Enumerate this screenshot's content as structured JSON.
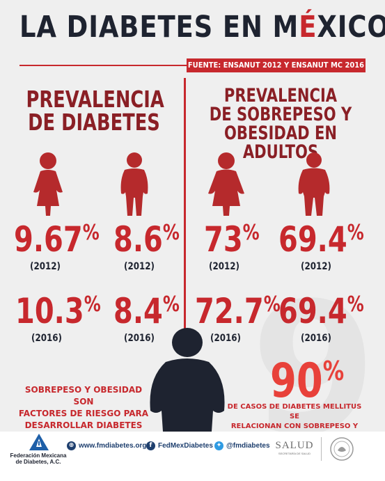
{
  "title": {
    "part1": "LA DIABETES EN M",
    "accent": "É",
    "part2": "XICO"
  },
  "source": "FUENTE: ENSANUT 2012 Y ENSANUT MC 2016",
  "left": {
    "heading_line1": "PREVALENCIA",
    "heading_line2": "DE DIABETES",
    "stats": [
      {
        "figure": "female-figure-icon",
        "value": "9.67",
        "symbol": "%",
        "year": "(2012)"
      },
      {
        "figure": "male-figure-icon",
        "value": "8.6",
        "symbol": "%",
        "year": "(2012)"
      },
      {
        "figure": "female",
        "value": "10.3",
        "symbol": "%",
        "year": "(2016)"
      },
      {
        "figure": "male",
        "value": "8.4",
        "symbol": "%",
        "year": "(2016)"
      }
    ]
  },
  "right": {
    "heading_line1": "PREVALENCIA",
    "heading_line2": "DE SOBREPESO Y",
    "heading_line3": "OBESIDAD EN ADULTOS",
    "stats": [
      {
        "figure": "overweight-female-figure-icon",
        "value": "73",
        "symbol": "%",
        "year": "(2012)"
      },
      {
        "figure": "overweight-male-figure-icon",
        "value": "69.4",
        "symbol": "%",
        "year": "(2012)"
      },
      {
        "figure": "female",
        "value": "72.7",
        "symbol": "%",
        "year": "(2016)"
      },
      {
        "figure": "male",
        "value": "69.4",
        "symbol": "%",
        "year": "(2016)"
      }
    ]
  },
  "risk": {
    "line1": "SOBREPESO Y OBESIDAD SON",
    "line2": "FACTORES DE RIESGO PARA",
    "line3": "DESARROLLAR DIABETES"
  },
  "big_stat": {
    "value": "90",
    "symbol": "%",
    "line1": "DE CASOS DE DIABETES MELLITUS SE",
    "line2": "RELACIONAN CON SOBREPESO Y OBESIDAD"
  },
  "footer": {
    "org_line1": "Federación Mexicana",
    "org_line2": "de Diabetes, A.C.",
    "website": "www.fmdiabetes.org",
    "facebook": "FedMexDiabetes",
    "twitter": "@fmdiabetes",
    "salud": "SALUD",
    "salud_sub": "SECRETARÍA DE SALUD"
  },
  "colors": {
    "accent_red": "#c7282d",
    "figure_red": "#b52a2c",
    "dark_navy": "#1e2330",
    "background": "#efefef"
  }
}
